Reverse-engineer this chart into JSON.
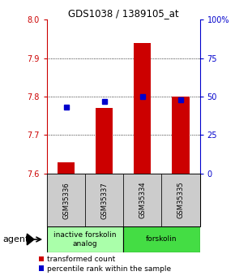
{
  "title": "GDS1038 / 1389105_at",
  "samples": [
    "GSM35336",
    "GSM35337",
    "GSM35334",
    "GSM35335"
  ],
  "bar_bottom": 7.6,
  "ylim_left": [
    7.6,
    8.0
  ],
  "ylim_right": [
    0,
    100
  ],
  "yticks_left": [
    7.6,
    7.7,
    7.8,
    7.9,
    8.0
  ],
  "yticks_right": [
    0,
    25,
    50,
    75,
    100
  ],
  "ytick_labels_right": [
    "0",
    "25",
    "50",
    "75",
    "100%"
  ],
  "transformed_counts": [
    7.63,
    7.77,
    7.94,
    7.8
  ],
  "percentile_ranks": [
    43,
    47,
    50,
    48
  ],
  "agent_groups": [
    {
      "label": "inactive forskolin\nanalog",
      "color": "#aaffaa",
      "span": [
        0,
        1
      ]
    },
    {
      "label": "forskolin",
      "color": "#44dd44",
      "span": [
        2,
        3
      ]
    }
  ],
  "bar_color": "#cc0000",
  "percentile_color": "#0000cc",
  "left_axis_color": "#cc0000",
  "right_axis_color": "#0000cc",
  "sample_box_color": "#cccccc",
  "bar_width": 0.45
}
